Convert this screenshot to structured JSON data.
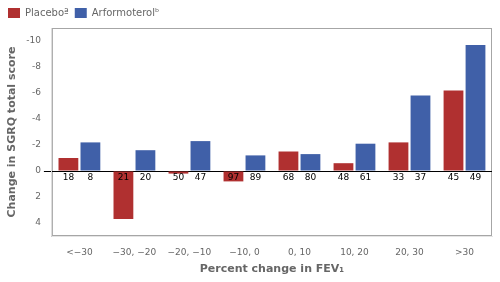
{
  "chart_data": {
    "type": "bar",
    "categories": [
      "<−30",
      "−30, −20",
      "−20, −10",
      "−10, 0",
      "0, 10",
      "10, 20",
      "20, 30",
      ">30"
    ],
    "series": [
      {
        "name": "Placeboª",
        "color": "#b03030",
        "values": [
          -1.0,
          3.7,
          0.2,
          0.8,
          -1.5,
          -0.6,
          -2.2,
          -6.2
        ],
        "n": [
          18,
          21,
          50,
          97,
          68,
          48,
          33,
          45
        ]
      },
      {
        "name": "Arformoterolᵇ",
        "color": "#4060a8",
        "values": [
          -2.2,
          -1.6,
          -2.3,
          -1.2,
          -1.3,
          -2.1,
          -5.8,
          -9.7
        ],
        "n": [
          8,
          20,
          47,
          89,
          80,
          61,
          37,
          49
        ]
      }
    ],
    "xlabel": "Percent change in FEV₁",
    "ylabel": "Change in SGRQ total score",
    "ylim": [
      5.0,
      -11.0
    ],
    "yticks": [
      -10,
      -8,
      -6,
      -4,
      -2,
      0,
      2,
      4
    ],
    "legend": "upper left",
    "grid": false
  }
}
